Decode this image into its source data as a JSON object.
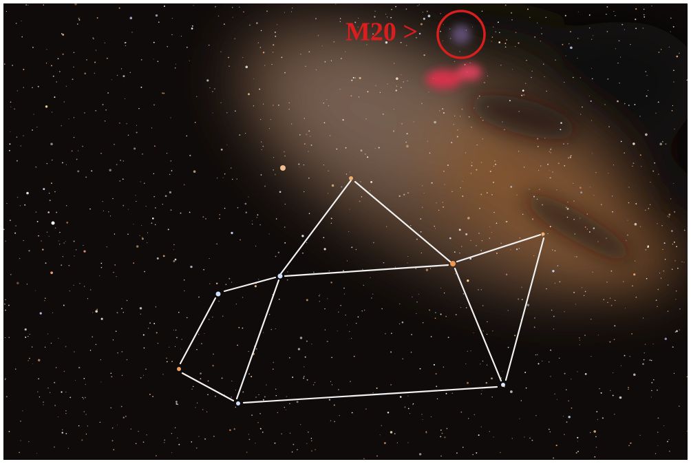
{
  "annotation": {
    "label": "M20 >"
  }
}
